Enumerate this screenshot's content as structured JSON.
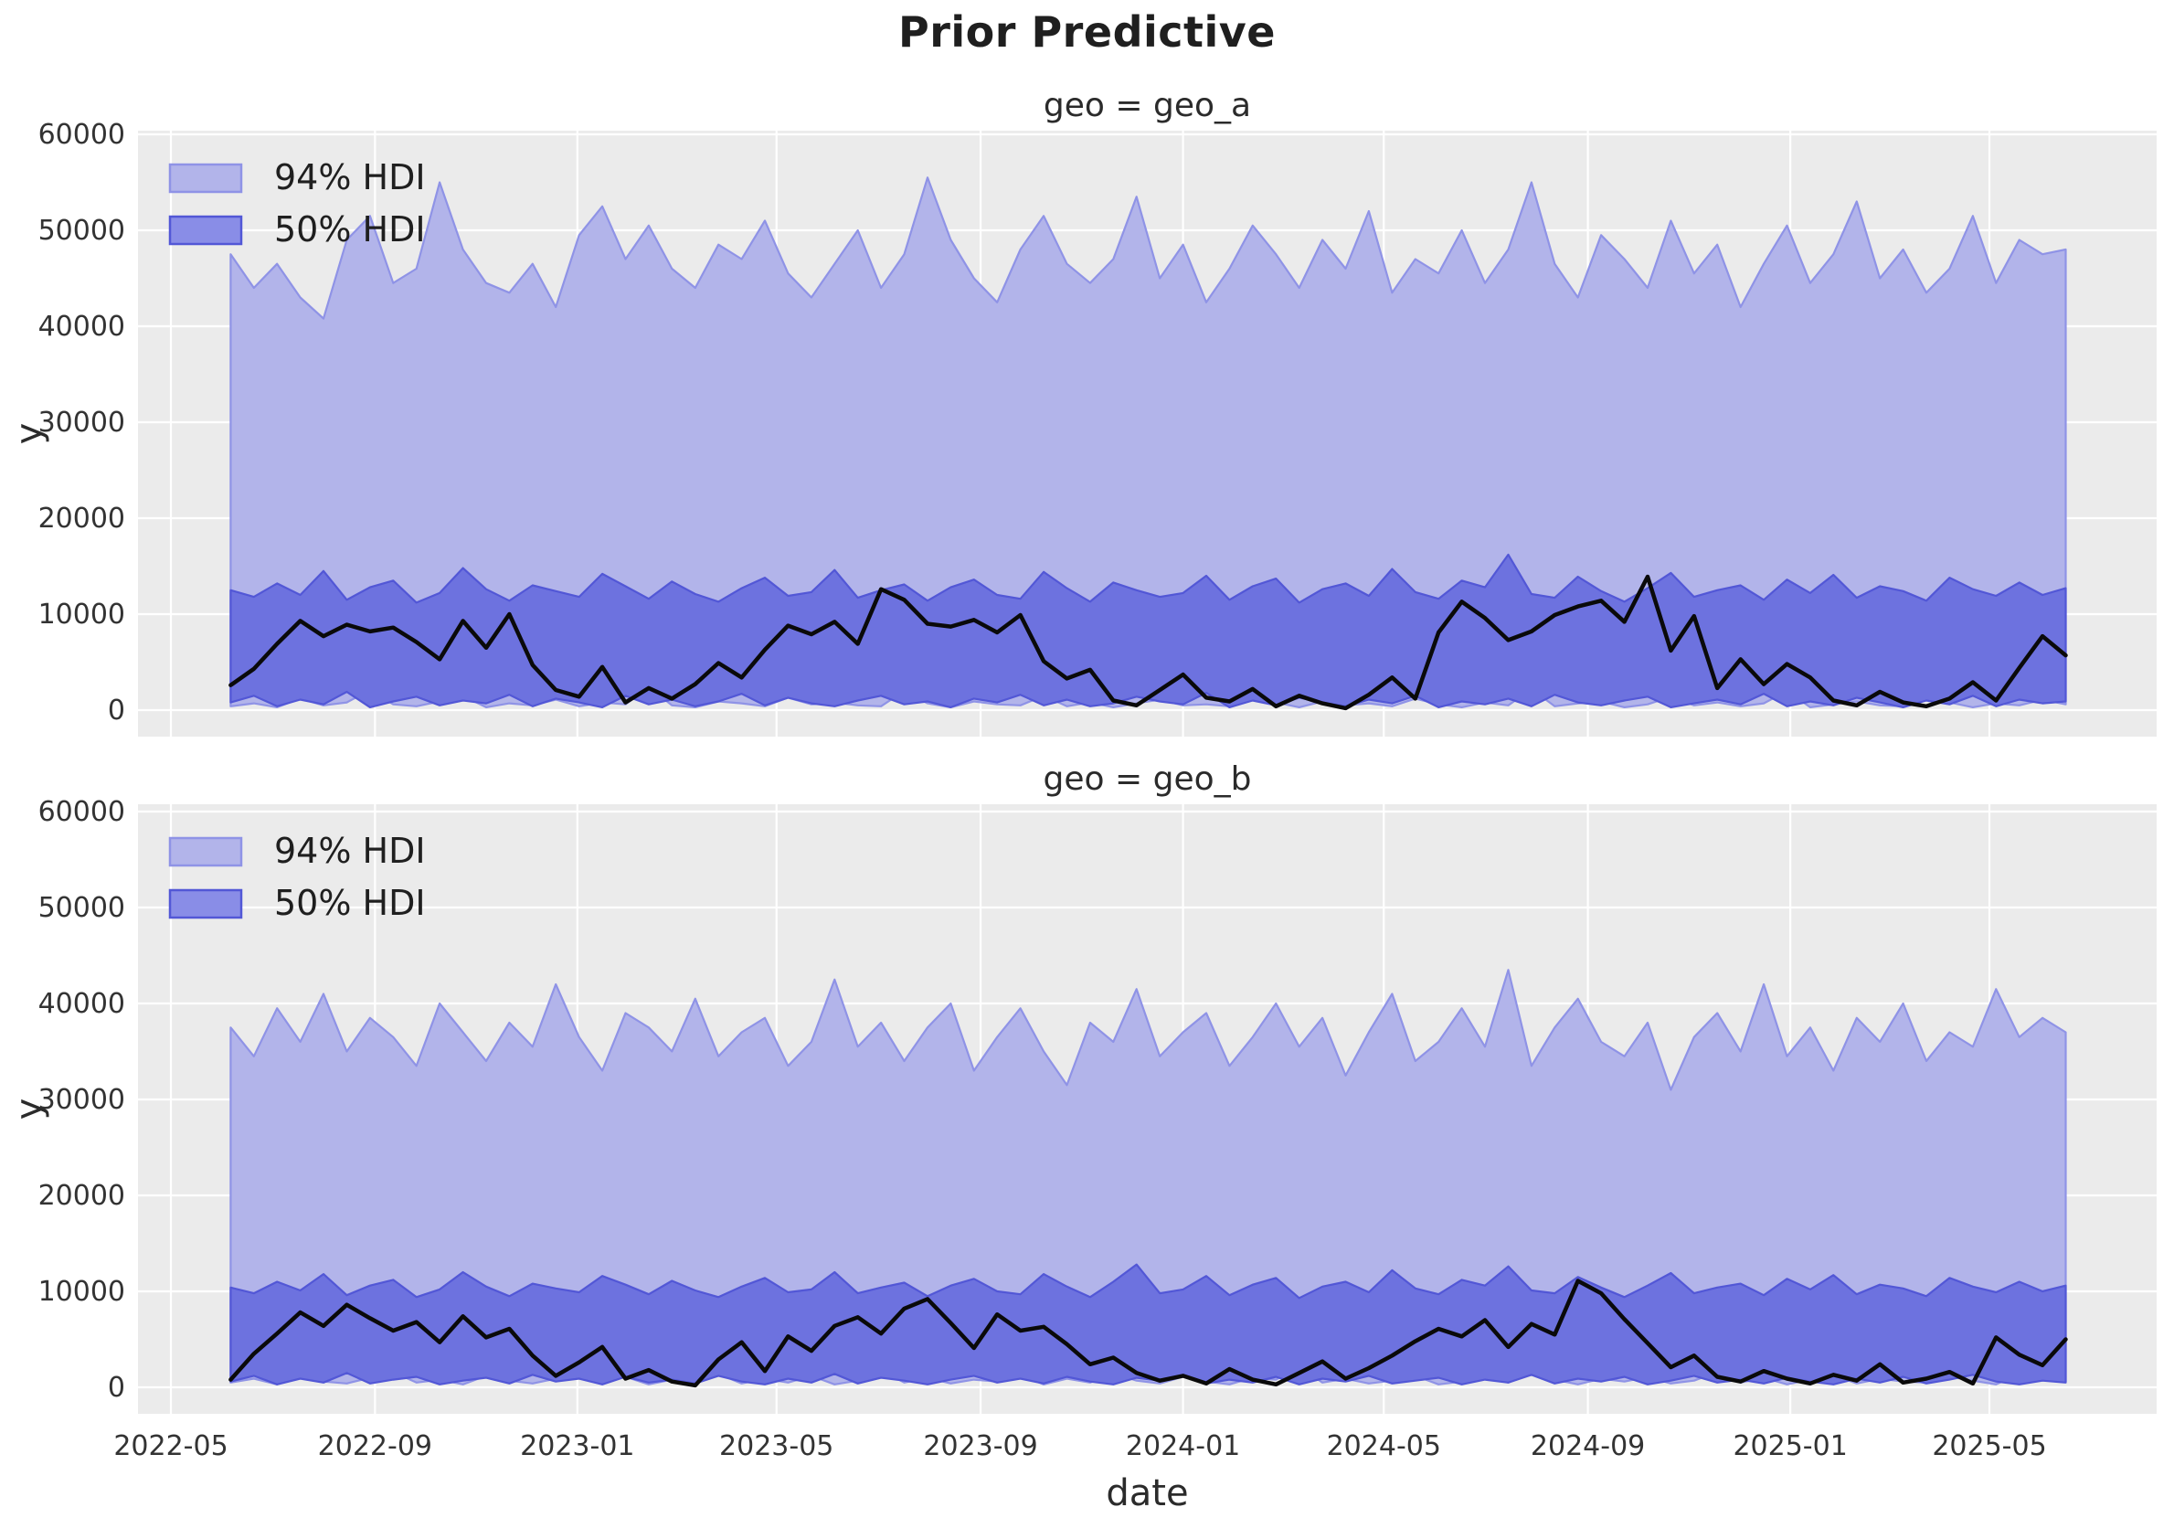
{
  "title": "Prior Predictive",
  "axis": {
    "xlabel": "date",
    "ylabel": "y",
    "y_ticks": [
      0,
      10000,
      20000,
      30000,
      40000,
      50000,
      60000
    ],
    "y_tick_labels": [
      "0",
      "10000",
      "20000",
      "30000",
      "40000",
      "50000",
      "60000"
    ],
    "x_tick_labels": [
      "2022-05",
      "2022-09",
      "2023-01",
      "2023-05",
      "2023-09",
      "2024-01",
      "2024-05",
      "2024-09",
      "2025-01",
      "2025-05"
    ],
    "x_tick_day_offsets": [
      0,
      123,
      245,
      365,
      488,
      610,
      731,
      854,
      976,
      1096
    ],
    "x_epoch_date": "2022-05-01",
    "x_start_day": 36,
    "x_step_days": 14,
    "n_points": 80,
    "ylim": [
      -2800,
      60500
    ]
  },
  "legend": {
    "items": [
      {
        "label": "94% HDI",
        "fill": "#b2b4ea",
        "edge": "#8f93e6"
      },
      {
        "label": "50% HDI",
        "fill": "#898de7",
        "edge": "#5257d6"
      }
    ]
  },
  "colors": {
    "figure_bg": "#ffffff",
    "axes_bg": "#ebebeb",
    "grid": "#ffffff",
    "text": "#2b2b2b",
    "tick_text": "#333333",
    "hdi94_fill": "#b2b4ea",
    "hdi94_edge": "#8f93e6",
    "hdi50_fill": "#6d72df",
    "hdi50_edge": "#5257d6",
    "line": "#0a0a0a"
  },
  "chart_data": [
    {
      "type": "area",
      "facet_title": "geo = geo_a",
      "hdi94_upper": [
        47500,
        44000,
        46500,
        43000,
        40800,
        49000,
        51500,
        44500,
        46000,
        55000,
        48000,
        44500,
        43500,
        46500,
        42000,
        49500,
        52500,
        47000,
        50500,
        46000,
        44000,
        48500,
        47000,
        51000,
        45500,
        43000,
        46500,
        50000,
        44000,
        47500,
        55500,
        49000,
        45000,
        42500,
        48000,
        51500,
        46500,
        44500,
        47000,
        53500,
        45000,
        48500,
        42500,
        46000,
        50500,
        47500,
        44000,
        49000,
        46000,
        52000,
        43500,
        47000,
        45500,
        50000,
        44500,
        48000,
        55000,
        46500,
        43000,
        49500,
        47000,
        44000,
        51000,
        45500,
        48500,
        42000,
        46500,
        50500,
        44500,
        47500,
        53000,
        45000,
        48000,
        43500,
        46000,
        51500,
        44500,
        49000,
        47500,
        48000
      ],
      "hdi94_lower": [
        400,
        700,
        300,
        1200,
        500,
        800,
        2100,
        600,
        400,
        900,
        1500,
        300,
        700,
        500,
        1100,
        400,
        800,
        600,
        2400,
        500,
        300,
        900,
        700,
        400,
        1300,
        600,
        800,
        500,
        400,
        2000,
        700,
        300,
        900,
        600,
        500,
        1500,
        400,
        800,
        300,
        700,
        1100,
        500,
        600,
        400,
        2600,
        800,
        300,
        900,
        500,
        700,
        400,
        1200,
        600,
        300,
        800,
        500,
        2200,
        400,
        700,
        900,
        300,
        600,
        1400,
        500,
        800,
        400,
        700,
        2000,
        300,
        600,
        900,
        500,
        400,
        1700,
        800,
        300,
        700,
        500,
        1100,
        600
      ],
      "hdi50_upper": [
        12500,
        11800,
        13200,
        12000,
        14500,
        11500,
        12800,
        13500,
        11200,
        12200,
        14800,
        12600,
        11400,
        13000,
        12400,
        11800,
        14200,
        12900,
        11600,
        13400,
        12100,
        11300,
        12700,
        13800,
        11900,
        12300,
        14600,
        11700,
        12500,
        13100,
        11400,
        12800,
        13600,
        12000,
        11600,
        14400,
        12700,
        11300,
        13300,
        12500,
        11800,
        12200,
        14000,
        11500,
        12900,
        13700,
        11200,
        12600,
        13200,
        11900,
        14700,
        12300,
        11600,
        13500,
        12800,
        16200,
        12100,
        11700,
        13900,
        12400,
        11300,
        12700,
        14300,
        11800,
        12500,
        13000,
        11500,
        13600,
        12200,
        14100,
        11700,
        12900,
        12400,
        11400,
        13800,
        12600,
        11900,
        13300,
        12000,
        12700
      ],
      "hdi50_lower": [
        800,
        1500,
        400,
        1100,
        600,
        1900,
        300,
        900,
        1400,
        500,
        1000,
        700,
        1600,
        400,
        1200,
        800,
        300,
        1500,
        600,
        1100,
        400,
        900,
        1700,
        500,
        1300,
        700,
        400,
        1000,
        1500,
        600,
        900,
        300,
        1200,
        800,
        1600,
        500,
        1100,
        400,
        700,
        1400,
        900,
        600,
        1800,
        300,
        1000,
        500,
        1300,
        800,
        400,
        1100,
        700,
        1500,
        300,
        900,
        600,
        1200,
        400,
        1600,
        800,
        500,
        1000,
        1400,
        300,
        700,
        1100,
        600,
        1700,
        400,
        900,
        500,
        1300,
        800,
        300,
        1000,
        600,
        1500,
        400,
        1100,
        700,
        900
      ],
      "y_observed": [
        2600,
        4300,
        6900,
        9300,
        7700,
        8900,
        8200,
        8600,
        7100,
        5300,
        9300,
        6500,
        10000,
        4700,
        2100,
        1400,
        4500,
        800,
        2300,
        1200,
        2700,
        4900,
        3400,
        6300,
        8800,
        7900,
        9200,
        6900,
        12600,
        11500,
        9000,
        8700,
        9400,
        8100,
        9900,
        5100,
        3300,
        4200,
        1000,
        500,
        2100,
        3700,
        1300,
        900,
        2200,
        400,
        1500,
        700,
        200,
        1600,
        3400,
        1200,
        8100,
        11300,
        9600,
        7300,
        8200,
        9900,
        10800,
        11400,
        9200,
        13900,
        6200,
        9800,
        2300,
        5300,
        2700,
        4800,
        3400,
        1000,
        500,
        1900,
        800,
        400,
        1200,
        2900,
        1000,
        4400,
        7700,
        5700
      ]
    },
    {
      "type": "area",
      "facet_title": "geo = geo_b",
      "hdi94_upper": [
        37500,
        34500,
        39500,
        36000,
        41000,
        35000,
        38500,
        36500,
        33500,
        40000,
        37000,
        34000,
        38000,
        35500,
        42000,
        36500,
        33000,
        39000,
        37500,
        35000,
        40500,
        34500,
        37000,
        38500,
        33500,
        36000,
        42500,
        35500,
        38000,
        34000,
        37500,
        40000,
        33000,
        36500,
        39500,
        35000,
        31500,
        38000,
        36000,
        41500,
        34500,
        37000,
        39000,
        33500,
        36500,
        40000,
        35500,
        38500,
        32500,
        37000,
        41000,
        34000,
        36000,
        39500,
        35500,
        43500,
        33500,
        37500,
        40500,
        36000,
        34500,
        38000,
        31000,
        36500,
        39000,
        35000,
        42000,
        34500,
        37500,
        33000,
        38500,
        36000,
        40000,
        34000,
        37000,
        35500,
        41500,
        36500,
        38500,
        37000
      ],
      "hdi94_lower": [
        500,
        900,
        300,
        1300,
        600,
        400,
        1000,
        1600,
        500,
        800,
        300,
        1200,
        700,
        400,
        900,
        2000,
        500,
        1100,
        300,
        800,
        600,
        1400,
        400,
        900,
        500,
        1200,
        300,
        700,
        1800,
        500,
        1000,
        400,
        800,
        600,
        1300,
        300,
        900,
        500,
        1500,
        700,
        400,
        1100,
        600,
        300,
        1000,
        800,
        2200,
        500,
        900,
        400,
        700,
        1200,
        300,
        600,
        1000,
        500,
        1400,
        800,
        300,
        900,
        600,
        1100,
        400,
        700,
        1600,
        500,
        1000,
        300,
        800,
        1300,
        400,
        900,
        600,
        500,
        1100,
        700,
        300,
        1400,
        800,
        600
      ],
      "hdi50_upper": [
        10400,
        9800,
        11000,
        10100,
        11800,
        9600,
        10600,
        11200,
        9400,
        10200,
        12000,
        10500,
        9500,
        10800,
        10300,
        9900,
        11600,
        10700,
        9700,
        11100,
        10100,
        9400,
        10500,
        11400,
        9900,
        10200,
        12000,
        9800,
        10400,
        10900,
        9500,
        10600,
        11300,
        10000,
        9700,
        11800,
        10500,
        9400,
        11000,
        12800,
        9800,
        10200,
        11600,
        9600,
        10700,
        11400,
        9300,
        10500,
        11000,
        9900,
        12200,
        10300,
        9700,
        11200,
        10600,
        12600,
        10100,
        9800,
        11500,
        10400,
        9400,
        10600,
        11900,
        9800,
        10400,
        10800,
        9600,
        11300,
        10200,
        11700,
        9700,
        10700,
        10300,
        9500,
        11400,
        10500,
        9900,
        11000,
        10000,
        10600
      ],
      "hdi50_lower": [
        600,
        1200,
        300,
        900,
        500,
        1500,
        400,
        800,
        1100,
        300,
        700,
        1000,
        400,
        1300,
        600,
        900,
        300,
        1100,
        500,
        800,
        400,
        1200,
        600,
        300,
        900,
        500,
        1400,
        400,
        1000,
        700,
        300,
        800,
        1200,
        500,
        900,
        400,
        1100,
        600,
        300,
        1000,
        700,
        1300,
        400,
        800,
        500,
        1100,
        300,
        900,
        600,
        1200,
        400,
        700,
        1000,
        300,
        800,
        500,
        1300,
        400,
        900,
        600,
        1100,
        300,
        700,
        1200,
        500,
        800,
        400,
        1000,
        600,
        300,
        900,
        500,
        1100,
        400,
        800,
        1300,
        600,
        300,
        700,
        500
      ],
      "y_observed": [
        800,
        3500,
        5600,
        7800,
        6400,
        8600,
        7200,
        5900,
        6800,
        4700,
        7400,
        5200,
        6100,
        3300,
        1200,
        2600,
        4200,
        900,
        1800,
        600,
        200,
        2900,
        4700,
        1700,
        5300,
        3800,
        6400,
        7300,
        5600,
        8200,
        9200,
        6700,
        4100,
        7600,
        5900,
        6300,
        4500,
        2400,
        3100,
        1500,
        700,
        1200,
        400,
        1900,
        800,
        300,
        1500,
        2700,
        900,
        2000,
        3300,
        4800,
        6100,
        5300,
        7000,
        4200,
        6600,
        5500,
        11100,
        9800,
        7100,
        4600,
        2100,
        3300,
        1100,
        600,
        1700,
        900,
        400,
        1300,
        700,
        2400,
        500,
        900,
        1600,
        400,
        5200,
        3400,
        2300,
        5000
      ]
    }
  ]
}
